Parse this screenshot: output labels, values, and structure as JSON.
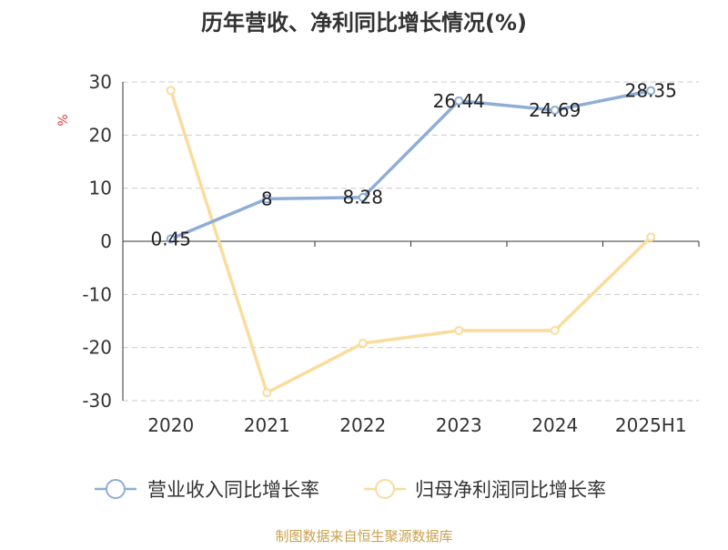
{
  "chart_data": {
    "type": "line",
    "title": "历年营收、净利同比增长情况(%)",
    "ylabel": "%",
    "xlabel": "",
    "categories": [
      "2020",
      "2021",
      "2022",
      "2023",
      "2024",
      "2025H1"
    ],
    "ylim": [
      -30,
      30
    ],
    "yticks": [
      30,
      20,
      10,
      0,
      -10,
      -20,
      -30
    ],
    "grid": true,
    "legend_position": "bottom",
    "series": [
      {
        "name": "营业收入同比增长率",
        "values": [
          0.45,
          8,
          8.28,
          26.44,
          24.69,
          28.35
        ],
        "labels": [
          "0.45",
          "8",
          "8.28",
          "26.44",
          "24.69",
          "28.35"
        ],
        "color": "#8fadd5"
      },
      {
        "name": "归母净利润同比增长率",
        "values": [
          28.4,
          -28.5,
          -19.2,
          -16.8,
          -16.8,
          0.8
        ],
        "color": "#fadc9c"
      }
    ],
    "source": "制图数据来自恒生聚源数据库"
  }
}
